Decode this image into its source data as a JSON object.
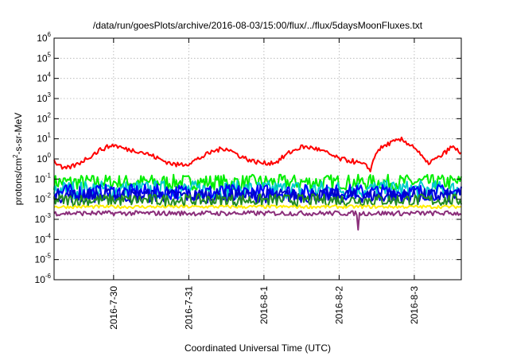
{
  "chart_data": {
    "type": "line",
    "title": "/data/run/goesPlots/archive/2016-08-03/15:00/flux/../flux/5daysMoonFluxes.txt",
    "xlabel": "Coordinated Universal Time (UTC)",
    "ylabel": {
      "base": "protons/cm",
      "sup": "2",
      "rest": "-s-sr-MeV"
    },
    "y_scale": "log",
    "ylim": [
      1e-06,
      1000000.0
    ],
    "xlim": [
      "2016-07-29T05:00",
      "2016-08-03T15:00"
    ],
    "grid": true,
    "legend": "none",
    "y_ticks": [
      {
        "base": "10",
        "exp": "-6",
        "value": 1e-06
      },
      {
        "base": "10",
        "exp": "-5",
        "value": 1e-05
      },
      {
        "base": "10",
        "exp": "-4",
        "value": 0.0001
      },
      {
        "base": "10",
        "exp": "-3",
        "value": 0.001
      },
      {
        "base": "10",
        "exp": "-2",
        "value": 0.01
      },
      {
        "base": "10",
        "exp": "-1",
        "value": 0.1
      },
      {
        "base": "10",
        "exp": "0",
        "value": 1
      },
      {
        "base": "10",
        "exp": "1",
        "value": 10
      },
      {
        "base": "10",
        "exp": "2",
        "value": 100
      },
      {
        "base": "10",
        "exp": "3",
        "value": 1000
      },
      {
        "base": "10",
        "exp": "4",
        "value": 10000
      },
      {
        "base": "10",
        "exp": "5",
        "value": 100000
      },
      {
        "base": "10",
        "exp": "6",
        "value": 1000000
      }
    ],
    "x_ticks": [
      {
        "label": "2016-7-30",
        "date": "2016-07-30T00:00"
      },
      {
        "label": "2016-7-31",
        "date": "2016-07-31T00:00"
      },
      {
        "label": "2016-8-1",
        "date": "2016-08-01T00:00"
      },
      {
        "label": "2016-8-2",
        "date": "2016-08-02T00:00"
      },
      {
        "label": "2016-8-3",
        "date": "2016-08-03T00:00"
      }
    ],
    "series": [
      {
        "color": "#ff0000",
        "noise": 0.12,
        "x": [
          "2016-07-29T05:00",
          "2016-07-29T08:00",
          "2016-07-29T12:00",
          "2016-07-29T16:00",
          "2016-07-29T20:00",
          "2016-07-30T00:00",
          "2016-07-30T04:00",
          "2016-07-30T08:00",
          "2016-07-30T12:00",
          "2016-07-30T16:00",
          "2016-07-30T20:00",
          "2016-07-31T00:00",
          "2016-07-31T04:00",
          "2016-07-31T08:00",
          "2016-07-31T12:00",
          "2016-07-31T16:00",
          "2016-07-31T20:00",
          "2016-08-01T00:00",
          "2016-08-01T04:00",
          "2016-08-01T08:00",
          "2016-08-01T12:00",
          "2016-08-01T16:00",
          "2016-08-01T20:00",
          "2016-08-02T00:00",
          "2016-08-02T04:00",
          "2016-08-02T08:00",
          "2016-08-02T10:00",
          "2016-08-02T12:00",
          "2016-08-02T16:00",
          "2016-08-02T20:00",
          "2016-08-03T00:00",
          "2016-08-03T04:00",
          "2016-08-03T08:00",
          "2016-08-03T12:00",
          "2016-08-03T15:00"
        ],
        "y": [
          0.8,
          0.3,
          0.5,
          1.2,
          3.0,
          5.0,
          3.0,
          2.5,
          1.5,
          0.8,
          0.5,
          0.6,
          1.2,
          2.5,
          3.5,
          1.5,
          0.8,
          0.6,
          0.7,
          2.0,
          4.0,
          3.5,
          2.0,
          1.0,
          0.8,
          0.5,
          0.3,
          2.5,
          6.0,
          9.0,
          4.0,
          0.6,
          1.2,
          4.0,
          2.0
        ]
      },
      {
        "color": "#00ee00",
        "base": 0.07,
        "noise": 0.38
      },
      {
        "color": "#00cccc",
        "base": 0.03,
        "noise": 0.45
      },
      {
        "color": "#0000ff",
        "base": 0.022,
        "noise": 0.4
      },
      {
        "color": "#0000cc",
        "base": 0.015,
        "noise": 0.35
      },
      {
        "color": "#228b22",
        "base": 0.009,
        "noise": 0.3
      },
      {
        "color": "#ffee00",
        "base": 0.0042,
        "noise": 0.08
      },
      {
        "color": "#8b2e7a",
        "base": 0.002,
        "noise": 0.12,
        "dip": {
          "x": "2016-08-02T06:00",
          "y": 0.0003
        }
      }
    ]
  }
}
